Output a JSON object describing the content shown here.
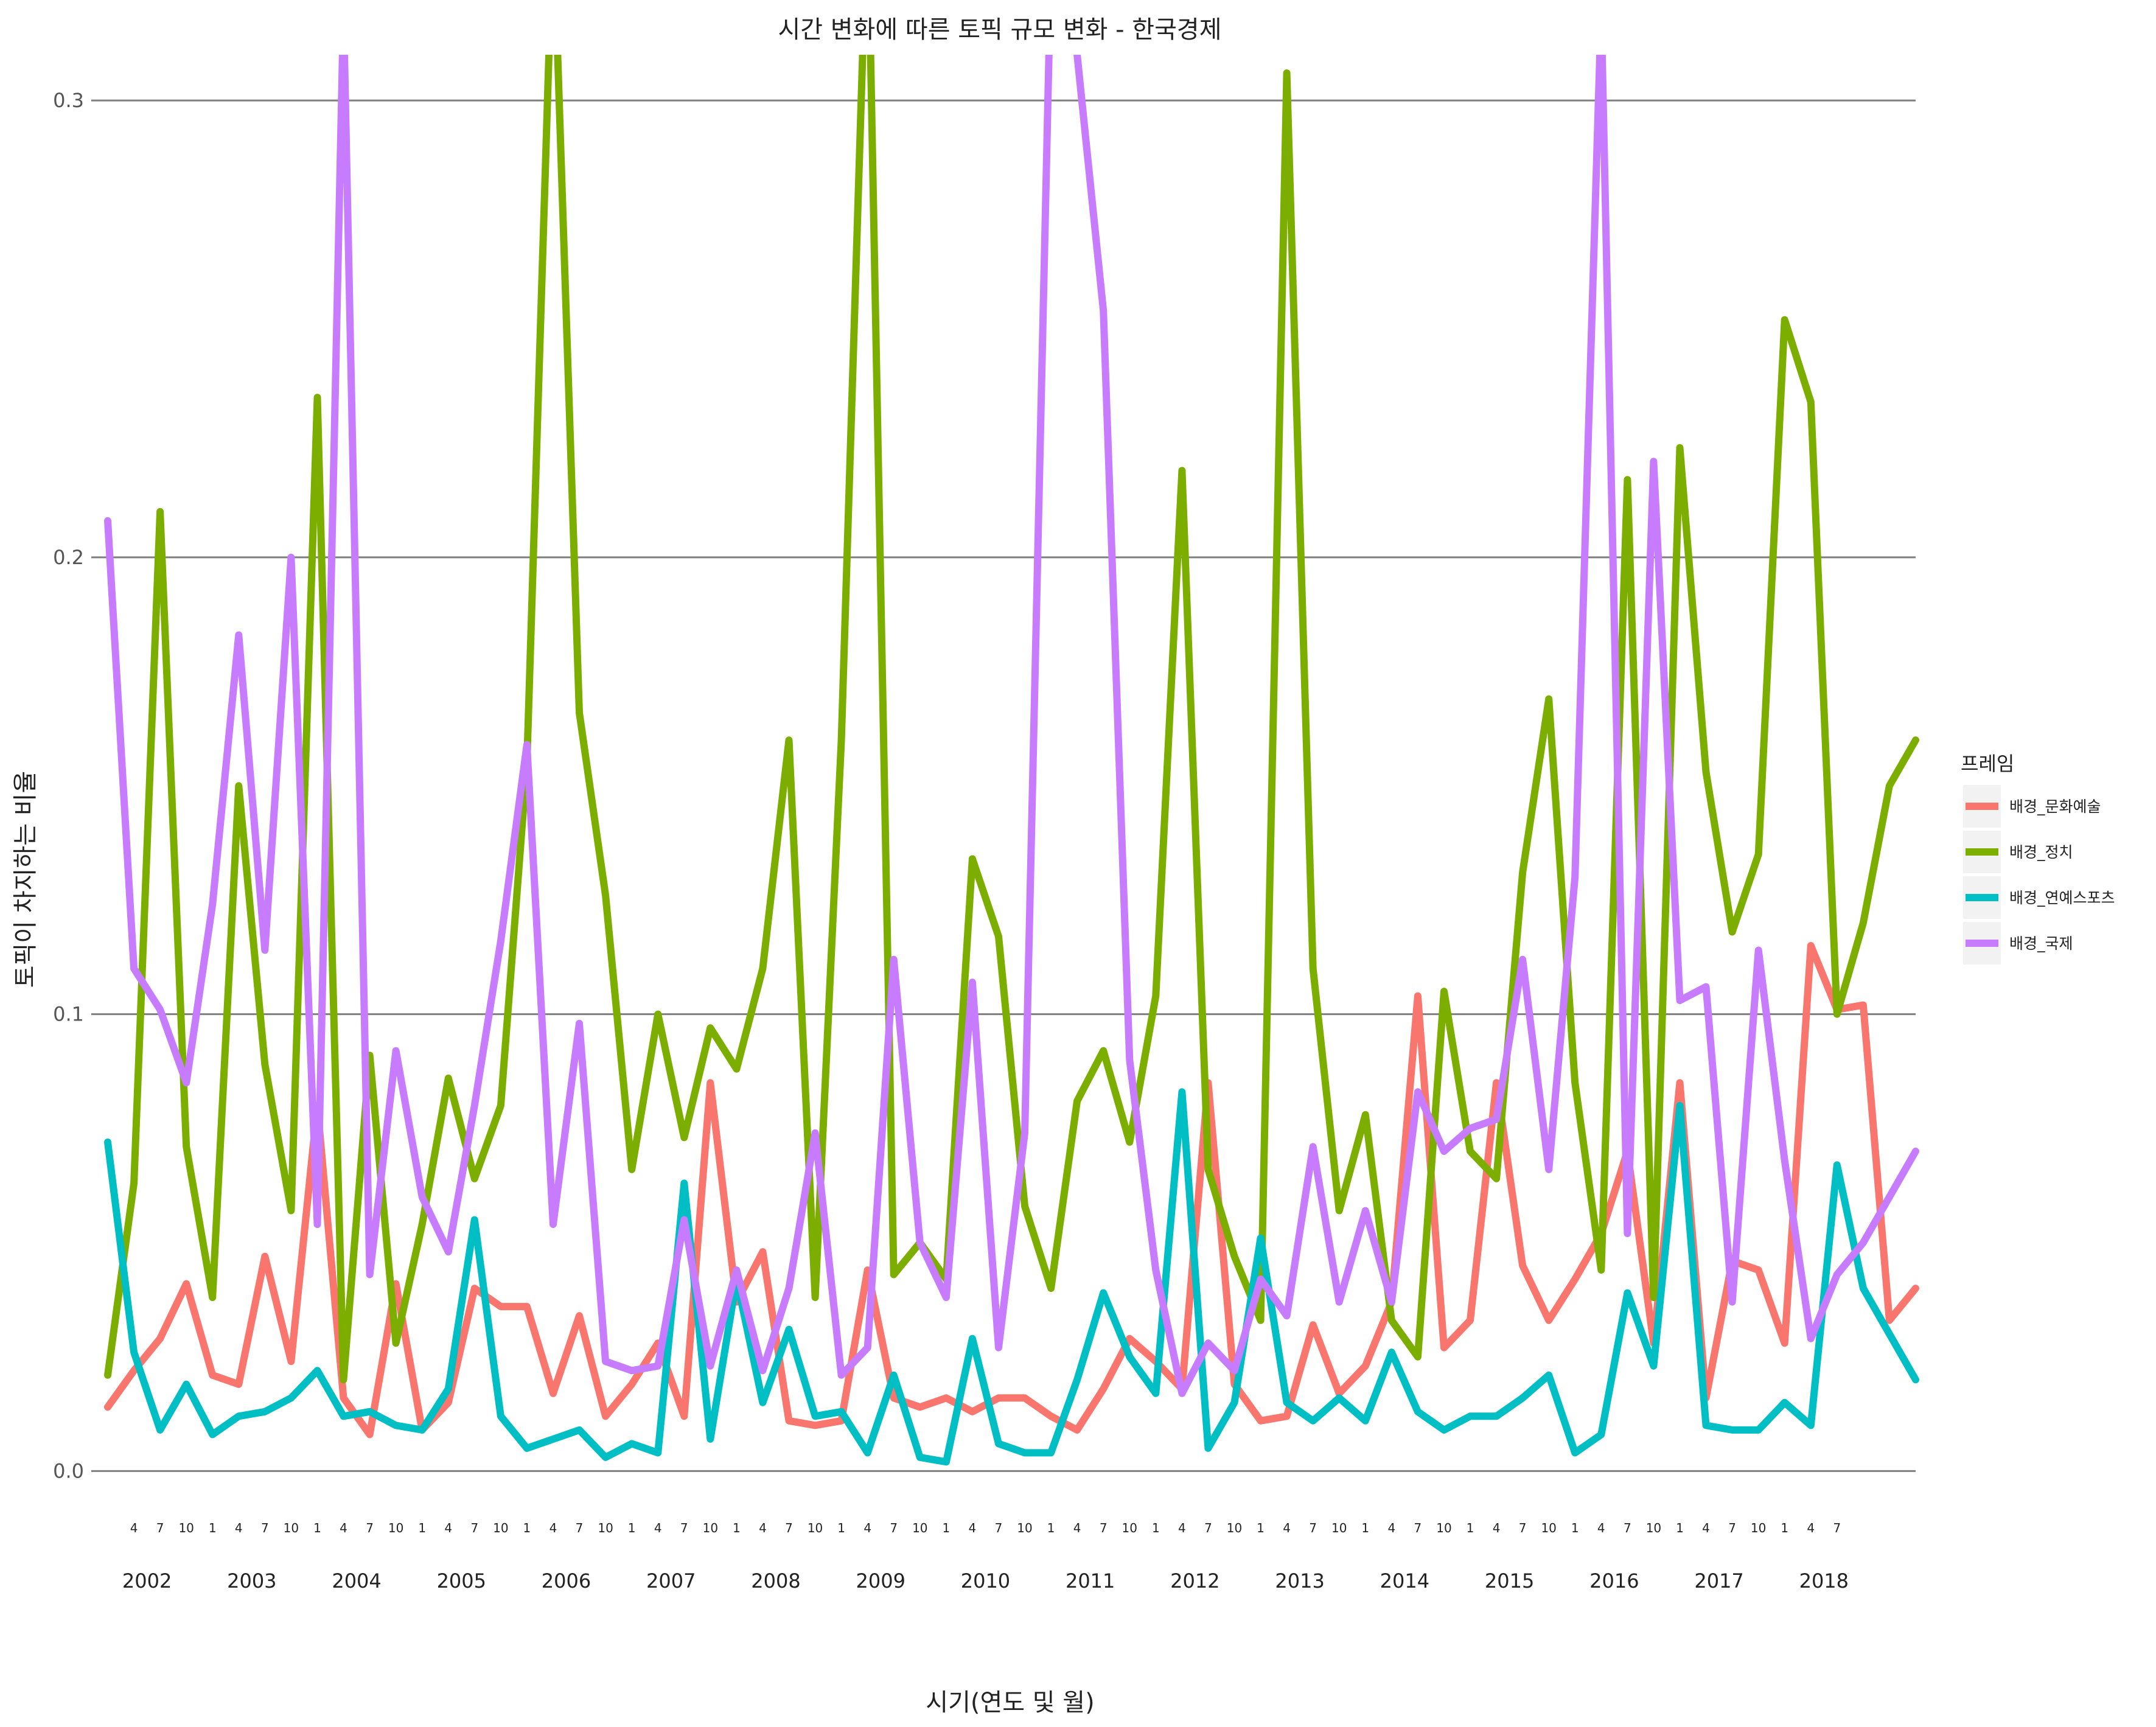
{
  "chart_data": {
    "type": "line",
    "title": "시간 변화에 따른 토픽 규모 변화 - 한국경제",
    "xlabel": "시기(연도 및 월)",
    "ylabel": "토픽이 차지하는 비율",
    "ylim": [
      -0.009,
      0.31
    ],
    "yticks": [
      0.0,
      0.1,
      0.2,
      0.3
    ],
    "ytick_labels": [
      "0.0",
      "0.1",
      "0.2",
      "0.3"
    ],
    "grid": "horizontal major lines",
    "legend": {
      "title": "프레임",
      "position": "right"
    },
    "x": [
      "2002-01",
      "2002-04",
      "2002-07",
      "2002-10",
      "2003-01",
      "2003-04",
      "2003-07",
      "2003-10",
      "2004-01",
      "2004-04",
      "2004-07",
      "2004-10",
      "2005-01",
      "2005-04",
      "2005-07",
      "2005-10",
      "2006-01",
      "2006-04",
      "2006-07",
      "2006-10",
      "2007-01",
      "2007-04",
      "2007-07",
      "2007-10",
      "2008-01",
      "2008-04",
      "2008-07",
      "2008-10",
      "2009-01",
      "2009-04",
      "2009-07",
      "2009-10",
      "2010-01",
      "2010-04",
      "2010-07",
      "2010-10",
      "2011-01",
      "2011-04",
      "2011-07",
      "2011-10",
      "2012-01",
      "2012-04",
      "2012-07",
      "2012-10",
      "2013-01",
      "2013-04",
      "2013-07",
      "2013-10",
      "2014-01",
      "2014-04",
      "2014-07",
      "2014-10",
      "2015-01",
      "2015-04",
      "2015-07",
      "2015-10",
      "2016-01",
      "2016-04",
      "2016-07",
      "2016-10",
      "2017-01",
      "2017-04",
      "2017-07",
      "2017-10",
      "2018-01",
      "2018-04",
      "2018-07",
      "2018-10",
      "2019-01",
      "2019-04"
    ],
    "x_month_labels": [
      "1",
      "4",
      "7",
      "10",
      "1",
      "4",
      "7",
      "10",
      "1",
      "4",
      "7",
      "10",
      "1",
      "4",
      "7",
      "10",
      "1",
      "4",
      "7",
      "10",
      "1",
      "4",
      "7",
      "10",
      "1",
      "4",
      "7",
      "10",
      "1",
      "4",
      "7",
      "10",
      "1",
      "4",
      "7",
      "10",
      "1",
      "4",
      "7",
      "10",
      "1",
      "4",
      "7",
      "10",
      "1",
      "4",
      "7",
      "10",
      "1",
      "4",
      "7",
      "10",
      "1",
      "4",
      "7",
      "10",
      "1",
      "4",
      "7",
      "10",
      "1",
      "4",
      "7",
      "10",
      "1",
      "4",
      "7",
      "10",
      "1",
      "4"
    ],
    "x_year_labels": [
      "2002",
      "2003",
      "2004",
      "2005",
      "2006",
      "2007",
      "2008",
      "2009",
      "2010",
      "2011",
      "2012",
      "2013",
      "2014",
      "2015",
      "2016",
      "2017",
      "2018"
    ],
    "series": [
      {
        "name": "배경_문화예술",
        "color": "#F8766D",
        "values": [
          0.014,
          0.022,
          0.029,
          0.041,
          0.021,
          0.019,
          0.047,
          0.024,
          0.08,
          0.016,
          0.008,
          0.041,
          0.009,
          0.015,
          0.04,
          0.036,
          0.036,
          0.017,
          0.034,
          0.012,
          0.019,
          0.028,
          0.012,
          0.085,
          0.037,
          0.048,
          0.011,
          0.01,
          0.011,
          0.044,
          0.016,
          0.014,
          0.016,
          0.013,
          0.016,
          0.016,
          0.012,
          0.009,
          0.018,
          0.029,
          0.024,
          0.018,
          0.085,
          0.019,
          0.011,
          0.012,
          0.032,
          0.017,
          0.023,
          0.037,
          0.104,
          0.027,
          0.033,
          0.085,
          0.045,
          0.033,
          0.042,
          0.052,
          0.07,
          0.028,
          0.085,
          0.016,
          0.046,
          0.044,
          0.028,
          0.115,
          0.101,
          0.102,
          0.033,
          0.04
        ]
      },
      {
        "name": "배경_정치",
        "color": "#7CAE00",
        "values": [
          0.021,
          0.063,
          0.21,
          0.071,
          0.038,
          0.15,
          0.089,
          0.057,
          0.235,
          0.02,
          0.091,
          0.028,
          0.054,
          0.086,
          0.064,
          0.08,
          0.155,
          0.34,
          0.166,
          0.126,
          0.066,
          0.1,
          0.073,
          0.097,
          0.088,
          0.11,
          0.16,
          0.038,
          0.16,
          0.345,
          0.043,
          0.05,
          0.042,
          0.134,
          0.117,
          0.058,
          0.04,
          0.081,
          0.092,
          0.072,
          0.104,
          0.219,
          0.066,
          0.047,
          0.033,
          0.306,
          0.11,
          0.057,
          0.078,
          0.033,
          0.025,
          0.105,
          0.07,
          0.064,
          0.131,
          0.169,
          0.085,
          0.044,
          0.217,
          0.038,
          0.224,
          0.153,
          0.118,
          0.135,
          0.252,
          0.234,
          0.1,
          0.12,
          0.15,
          0.16
        ]
      },
      {
        "name": "배경_연예스포츠",
        "color": "#00BFC4",
        "values": [
          0.072,
          0.026,
          0.009,
          0.019,
          0.008,
          0.012,
          0.013,
          0.016,
          0.022,
          0.012,
          0.013,
          0.01,
          0.009,
          0.018,
          0.055,
          0.012,
          0.005,
          0.007,
          0.009,
          0.003,
          0.006,
          0.004,
          0.063,
          0.007,
          0.042,
          0.015,
          0.031,
          0.012,
          0.013,
          0.004,
          0.021,
          0.003,
          0.002,
          0.029,
          0.006,
          0.004,
          0.004,
          0.02,
          0.039,
          0.025,
          0.017,
          0.083,
          0.005,
          0.015,
          0.051,
          0.015,
          0.011,
          0.016,
          0.011,
          0.026,
          0.013,
          0.009,
          0.012,
          0.012,
          0.016,
          0.021,
          0.004,
          0.008,
          0.039,
          0.023,
          0.08,
          0.01,
          0.009,
          0.009,
          0.015,
          0.01,
          0.067,
          0.04,
          0.03,
          0.02
        ]
      },
      {
        "name": "배경_국제",
        "color": "#C77CFF",
        "values": [
          0.208,
          0.11,
          0.101,
          0.085,
          0.124,
          0.183,
          0.114,
          0.2,
          0.054,
          0.32,
          0.043,
          0.092,
          0.06,
          0.048,
          0.08,
          0.116,
          0.159,
          0.054,
          0.098,
          0.024,
          0.022,
          0.023,
          0.055,
          0.023,
          0.044,
          0.022,
          0.04,
          0.074,
          0.021,
          0.027,
          0.112,
          0.05,
          0.038,
          0.107,
          0.027,
          0.074,
          0.33,
          0.31,
          0.254,
          0.09,
          0.044,
          0.017,
          0.028,
          0.022,
          0.042,
          0.034,
          0.071,
          0.037,
          0.057,
          0.037,
          0.083,
          0.07,
          0.075,
          0.077,
          0.112,
          0.066,
          0.13,
          0.32,
          0.052,
          0.221,
          0.103,
          0.106,
          0.037,
          0.114,
          0.068,
          0.029,
          0.043,
          0.05,
          0.06,
          0.07
        ]
      }
    ]
  }
}
